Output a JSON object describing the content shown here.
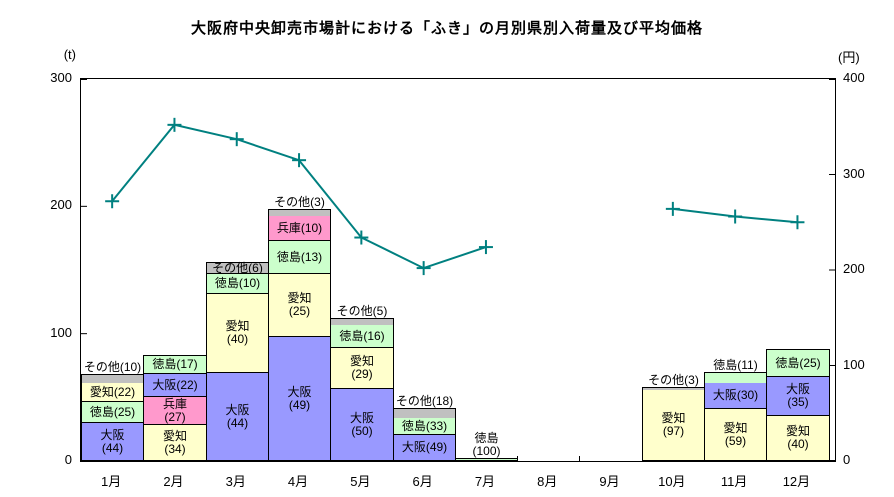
{
  "chart_data": {
    "type": "bar",
    "title": "大阪府中央卸売市場計における「ふき」の月別県別入荷量及び平均価格",
    "categories": [
      "1月",
      "2月",
      "3月",
      "4月",
      "5月",
      "6月",
      "7月",
      "8月",
      "9月",
      "10月",
      "11月",
      "12月"
    ],
    "left_axis": {
      "unit": "(t)",
      "range": [
        0,
        300
      ],
      "label_ticks": [
        300,
        200,
        100,
        0
      ]
    },
    "right_axis": {
      "unit": "(円)",
      "range": [
        0,
        400
      ],
      "label_ticks": [
        400,
        300,
        200,
        100,
        0
      ]
    },
    "colors": {
      "大阪": "#9999ff",
      "徳島": "#ccffcc",
      "愛知": "#ffffcc",
      "兵庫": "#ff99cc",
      "その他": "#c0c0c0"
    },
    "bars": [
      {
        "month": "1月",
        "total": 68,
        "segments": [
          {
            "name": "大阪",
            "pct": 44,
            "label": "inside2"
          },
          {
            "name": "徳島",
            "pct": 25,
            "label": "inside"
          },
          {
            "name": "愛知",
            "pct": 22,
            "label": "inside"
          },
          {
            "name": "その他",
            "pct": 10,
            "label": "above"
          }
        ]
      },
      {
        "month": "2月",
        "total": 83,
        "segments": [
          {
            "name": "愛知",
            "pct": 34,
            "label": "inside2"
          },
          {
            "name": "兵庫",
            "pct": 27,
            "label": "inside2"
          },
          {
            "name": "大阪",
            "pct": 22,
            "label": "inside"
          },
          {
            "name": "徳島",
            "pct": 17,
            "label": "inside"
          }
        ]
      },
      {
        "month": "3月",
        "total": 156,
        "segments": [
          {
            "name": "大阪",
            "pct": 44,
            "label": "inside2"
          },
          {
            "name": "愛知",
            "pct": 40,
            "label": "inside2"
          },
          {
            "name": "徳島",
            "pct": 10,
            "label": "inside"
          },
          {
            "name": "その他",
            "pct": 6,
            "label": "inside"
          }
        ]
      },
      {
        "month": "4月",
        "total": 198,
        "segments": [
          {
            "name": "大阪",
            "pct": 49,
            "label": "inside2"
          },
          {
            "name": "愛知",
            "pct": 25,
            "label": "inside2"
          },
          {
            "name": "徳島",
            "pct": 13,
            "label": "inside"
          },
          {
            "name": "兵庫",
            "pct": 10,
            "label": "inside"
          },
          {
            "name": "その他",
            "pct": 3,
            "label": "above"
          }
        ]
      },
      {
        "month": "5月",
        "total": 112,
        "segments": [
          {
            "name": "大阪",
            "pct": 50,
            "label": "inside2"
          },
          {
            "name": "愛知",
            "pct": 29,
            "label": "inside2"
          },
          {
            "name": "徳島",
            "pct": 16,
            "label": "inside"
          },
          {
            "name": "その他",
            "pct": 5,
            "label": "above"
          }
        ]
      },
      {
        "month": "6月",
        "total": 42,
        "segments": [
          {
            "name": "大阪",
            "pct": 49,
            "label": "inside"
          },
          {
            "name": "徳島",
            "pct": 33,
            "label": "inside"
          },
          {
            "name": "その他",
            "pct": 18,
            "label": "above"
          }
        ]
      },
      {
        "month": "7月",
        "total": 2,
        "segments": [
          {
            "name": "徳島",
            "pct": 100,
            "label": "above2"
          }
        ]
      },
      {
        "month": "8月",
        "total": 0,
        "segments": []
      },
      {
        "month": "9月",
        "total": 0,
        "segments": []
      },
      {
        "month": "10月",
        "total": 58,
        "segments": [
          {
            "name": "愛知",
            "pct": 97,
            "label": "inside2"
          },
          {
            "name": "その他",
            "pct": 3,
            "label": "above"
          }
        ]
      },
      {
        "month": "11月",
        "total": 70,
        "segments": [
          {
            "name": "愛知",
            "pct": 59,
            "label": "inside2"
          },
          {
            "name": "大阪",
            "pct": 30,
            "label": "inside"
          },
          {
            "name": "徳島",
            "pct": 11,
            "label": "above"
          }
        ]
      },
      {
        "month": "12月",
        "total": 88,
        "segments": [
          {
            "name": "愛知",
            "pct": 40,
            "label": "inside2"
          },
          {
            "name": "大阪",
            "pct": 35,
            "label": "inside2"
          },
          {
            "name": "徳島",
            "pct": 25,
            "label": "inside"
          }
        ]
      }
    ],
    "line": {
      "name": "平均価格",
      "color": "#008080",
      "values": [
        272,
        352,
        337,
        315,
        234,
        202,
        224,
        null,
        null,
        264,
        256,
        250
      ]
    }
  }
}
